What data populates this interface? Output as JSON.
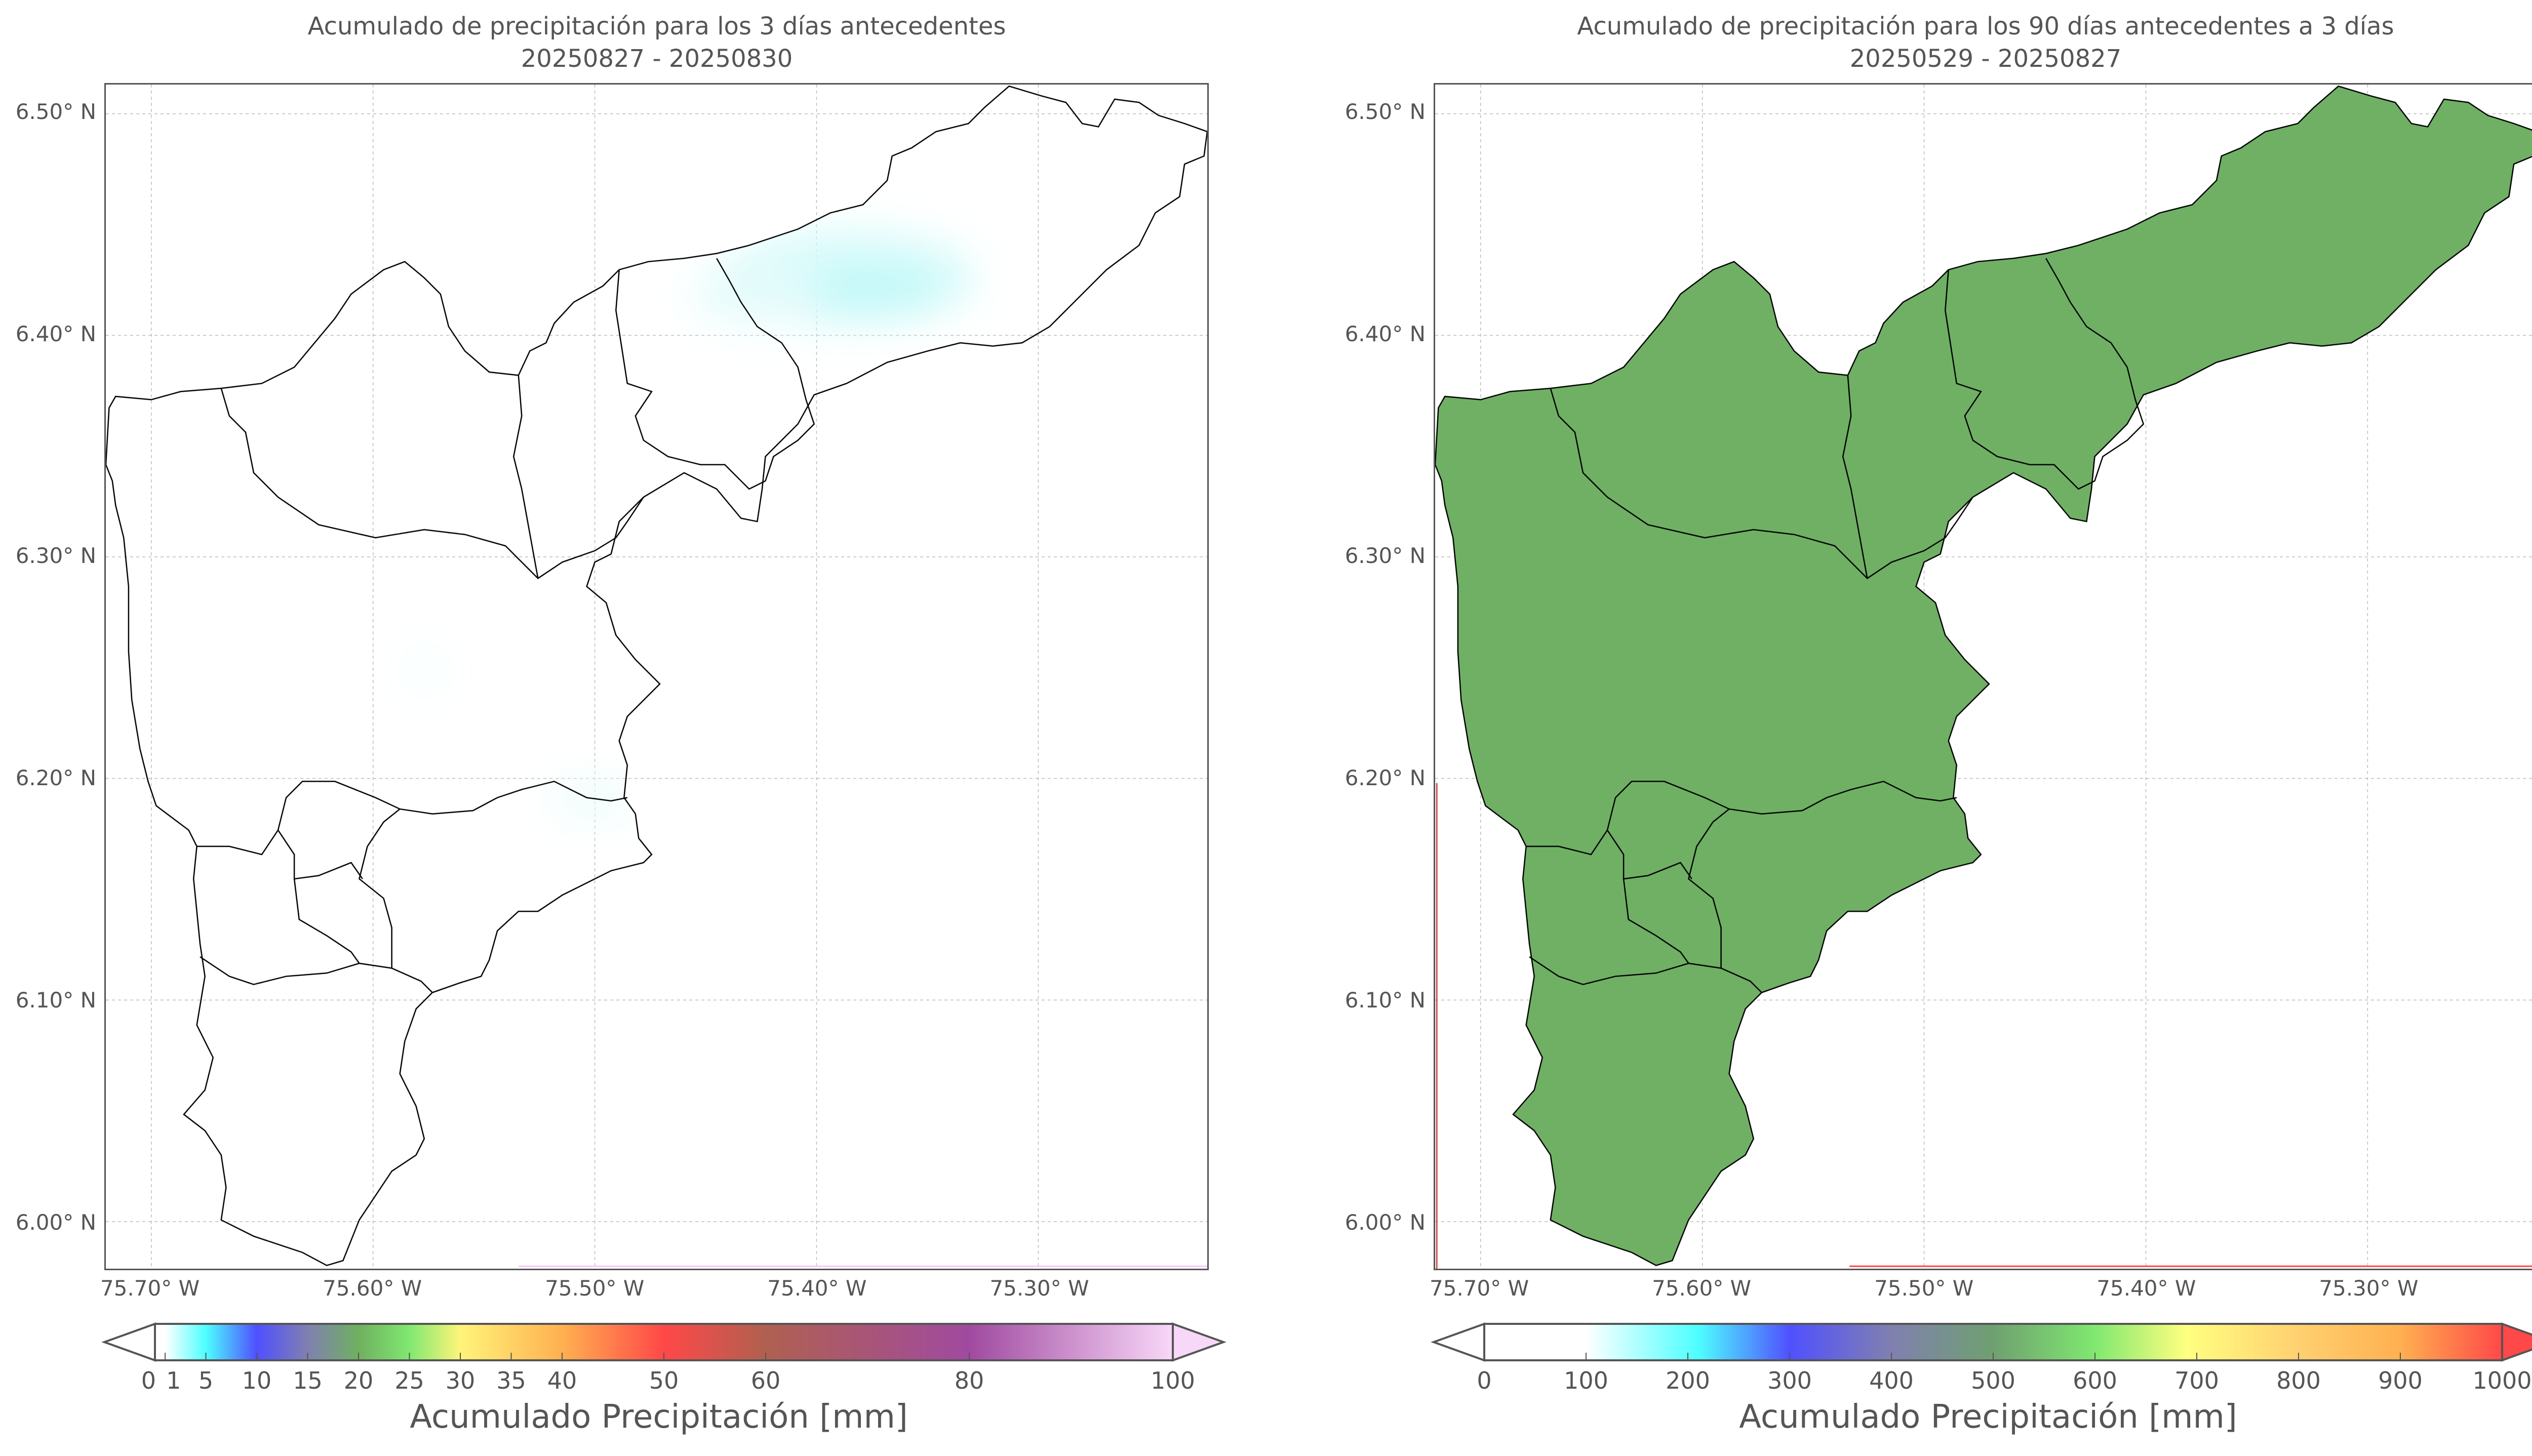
{
  "panels": [
    {
      "title_line1": "Acumulado de precipitación para los 3 días antecedentes",
      "title_line2": "20250827 - 20250830",
      "colorbar": {
        "label": "Acumulado Precipitación [mm]",
        "min": 0,
        "max": 100,
        "ticks": [
          0,
          1,
          5,
          10,
          15,
          20,
          25,
          30,
          35,
          40,
          50,
          60,
          80,
          100
        ],
        "tick_labels": [
          "0",
          "1",
          "5",
          "10",
          "15",
          "20",
          "25",
          "30",
          "35",
          "40",
          "50",
          "60",
          "80",
          "100"
        ],
        "extend": "both",
        "stops": [
          [
            0,
            "#ffffff"
          ],
          [
            0.01,
            "#ffffff"
          ],
          [
            0.05,
            "#4dffff"
          ],
          [
            0.1,
            "#4f4fff"
          ],
          [
            0.15,
            "#8080b0"
          ],
          [
            0.2,
            "#6fb060"
          ],
          [
            0.25,
            "#80e870"
          ],
          [
            0.3,
            "#fff47a"
          ],
          [
            0.4,
            "#ffb050"
          ],
          [
            0.5,
            "#ff4848"
          ],
          [
            0.6,
            "#b06050"
          ],
          [
            0.8,
            "#a04aa0"
          ],
          [
            1.0,
            "#f8d8f8"
          ]
        ]
      }
    },
    {
      "title_line1": "Acumulado de precipitación para los 90 días antecedentes a 3 días",
      "title_line2": "20250529 - 20250827",
      "colorbar": {
        "label": "Acumulado Precipitación [mm]",
        "min": 0,
        "max": 1000,
        "ticks": [
          0,
          100,
          200,
          300,
          400,
          500,
          600,
          700,
          800,
          900,
          1000
        ],
        "tick_labels": [
          "0",
          "100",
          "200",
          "300",
          "400",
          "500",
          "600",
          "700",
          "800",
          "900",
          "1000"
        ],
        "extend": "both",
        "stops": [
          [
            0,
            "#ffffff"
          ],
          [
            0.1,
            "#ffffff"
          ],
          [
            0.21,
            "#4dffff"
          ],
          [
            0.3,
            "#5050ff"
          ],
          [
            0.4,
            "#8080b0"
          ],
          [
            0.5,
            "#6fa070"
          ],
          [
            0.6,
            "#80e870"
          ],
          [
            0.69,
            "#ffff80"
          ],
          [
            0.8,
            "#ffd070"
          ],
          [
            0.9,
            "#ffb050"
          ],
          [
            1.0,
            "#ff4848"
          ]
        ]
      }
    }
  ],
  "lat_ticks": [
    6.5,
    6.4,
    6.3,
    6.2,
    6.1,
    6.0
  ],
  "lat_labels": [
    "6.50° N",
    "6.40° N",
    "6.30° N",
    "6.20° N",
    "6.10° N",
    "6.00° N"
  ],
  "lon_ticks": [
    -75.7,
    -75.6,
    -75.5,
    -75.4,
    -75.3
  ],
  "lon_labels": [
    "75.70° W",
    "75.60° W",
    "75.50° W",
    "75.40° W",
    "75.30° W"
  ],
  "colors": {
    "boundary": "#000000",
    "grid": "#bbbbbb",
    "frame": "#555555"
  }
}
